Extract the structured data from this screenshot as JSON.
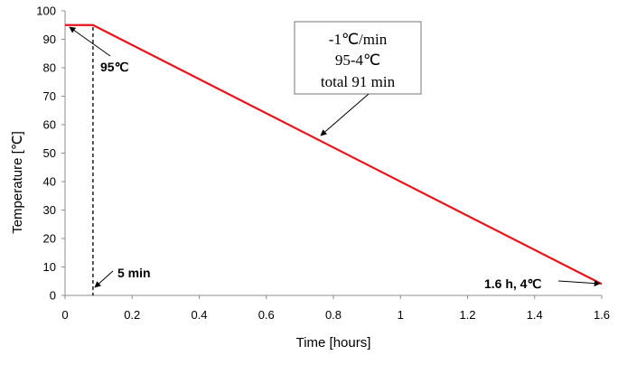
{
  "chart_data": {
    "type": "line",
    "xlabel": "Time [hours]",
    "ylabel": "Temperature [℃]",
    "xlim": [
      0,
      1.6
    ],
    "ylim": [
      0,
      100
    ],
    "xticks": [
      "0",
      "0.2",
      "0.4",
      "0.6",
      "0.8",
      "1",
      "1.2",
      "1.4",
      "1.6"
    ],
    "yticks": [
      "0",
      "10",
      "20",
      "30",
      "40",
      "50",
      "60",
      "70",
      "80",
      "90",
      "100"
    ],
    "grid": false,
    "series": [
      {
        "color": "#e8141b",
        "x": [
          0,
          0.0833,
          1.6
        ],
        "y": [
          95,
          95,
          4
        ]
      }
    ],
    "vertical_marker": {
      "x": 0.0833,
      "style": "dashed"
    },
    "annotations": {
      "start": "95℃",
      "hold": "5 min",
      "end": "1.6 h, 4℃",
      "box": [
        "-1℃/min",
        "95-4℃",
        "total 91 min"
      ]
    }
  }
}
